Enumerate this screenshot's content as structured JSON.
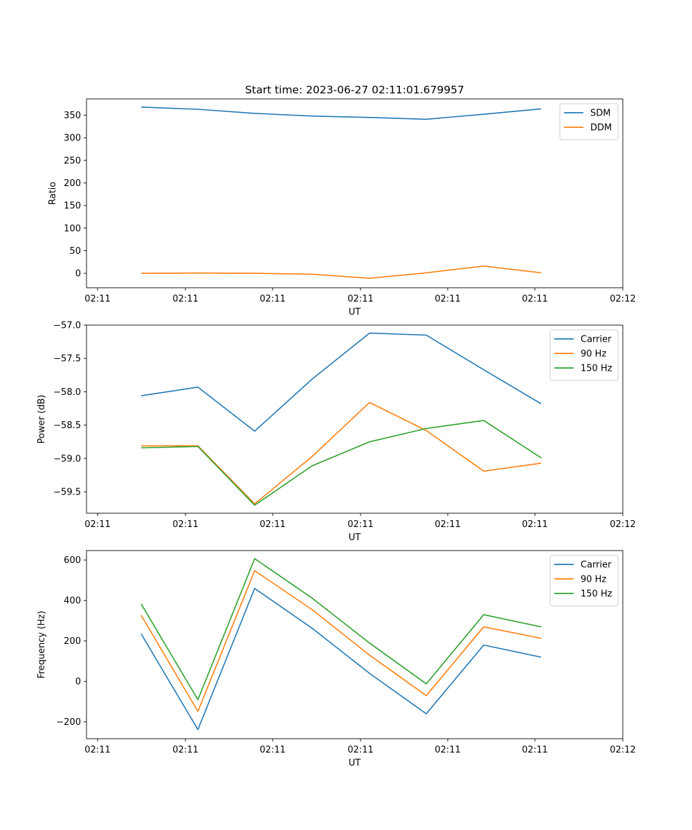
{
  "figure": {
    "title": "Start time: 2023-06-27 02:11:01.679957"
  },
  "colors": {
    "series1": "#1f77b4",
    "series2": "#ff7f0e",
    "series3": "#2ca02c"
  },
  "chart_data": [
    {
      "type": "line",
      "title": "Start time: 2023-06-27 02:11:01.679957",
      "xlabel": "UT",
      "ylabel": "Ratio",
      "x_tick_labels": [
        "02:11",
        "02:11",
        "02:11",
        "02:11",
        "02:11",
        "02:11",
        "02:12"
      ],
      "y_ticks": [
        0,
        50,
        100,
        150,
        200,
        250,
        300,
        350
      ],
      "ylim": [
        -32,
        386
      ],
      "legend": "top-right",
      "grid": false,
      "series": [
        {
          "name": "SDM",
          "values": [
            368,
            363,
            354,
            348,
            345,
            341,
            352,
            364
          ]
        },
        {
          "name": "DDM",
          "values": [
            0,
            0.5,
            0,
            -2,
            -11,
            1,
            16,
            1
          ]
        }
      ]
    },
    {
      "type": "line",
      "title": "",
      "xlabel": "UT",
      "ylabel": "Power (dB)",
      "x_tick_labels": [
        "02:11",
        "02:11",
        "02:11",
        "02:11",
        "02:11",
        "02:11",
        "02:12"
      ],
      "y_ticks": [
        -59.5,
        -59.0,
        -58.5,
        -58.0,
        -57.5,
        -57.0
      ],
      "y_tick_labels": [
        "−59.5",
        "−59.0",
        "−58.5",
        "−58.0",
        "−57.5",
        "−57.0"
      ],
      "ylim": [
        -59.82,
        -57.0
      ],
      "legend": "top-right",
      "grid": false,
      "series": [
        {
          "name": "Carrier",
          "values": [
            -58.06,
            -57.93,
            -58.59,
            -57.81,
            -57.12,
            -57.15,
            -57.67,
            -58.18
          ]
        },
        {
          "name": "90 Hz",
          "values": [
            -58.81,
            -58.81,
            -59.68,
            -58.97,
            -58.16,
            -58.58,
            -59.19,
            -59.07
          ]
        },
        {
          "name": "150 Hz",
          "values": [
            -58.84,
            -58.82,
            -59.7,
            -59.11,
            -58.75,
            -58.55,
            -58.43,
            -58.99
          ]
        }
      ]
    },
    {
      "type": "line",
      "title": "",
      "xlabel": "UT",
      "ylabel": "Frequency (Hz)",
      "x_tick_labels": [
        "02:11",
        "02:11",
        "02:11",
        "02:11",
        "02:11",
        "02:11",
        "02:12"
      ],
      "y_ticks": [
        -200,
        0,
        200,
        400,
        600
      ],
      "y_tick_labels": [
        "−200",
        "0",
        "200",
        "400",
        "600"
      ],
      "ylim": [
        -283,
        647
      ],
      "legend": "top-right",
      "grid": false,
      "series": [
        {
          "name": "Carrier",
          "values": [
            235,
            -238,
            460,
            263,
            40,
            -160,
            180,
            120
          ]
        },
        {
          "name": "90 Hz",
          "values": [
            327,
            -148,
            548,
            355,
            130,
            -70,
            270,
            213
          ]
        },
        {
          "name": "150 Hz",
          "values": [
            383,
            -90,
            607,
            412,
            190,
            -12,
            330,
            270
          ]
        }
      ]
    }
  ]
}
